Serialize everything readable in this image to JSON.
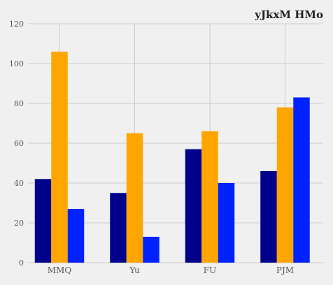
{
  "chart_data": {
    "type": "bar",
    "title": "yJkxM HMo",
    "xlabel": "",
    "ylabel": "",
    "categories": [
      "MMQ",
      "Yu",
      "FU",
      "PJM"
    ],
    "series": [
      {
        "values": [
          42,
          35,
          57,
          46
        ],
        "color": "#00008b"
      },
      {
        "values": [
          106,
          65,
          66,
          78
        ],
        "color": "#ffa500"
      },
      {
        "values": [
          27,
          13,
          40,
          83
        ],
        "color": "#0022ff"
      }
    ],
    "ylim": [
      0,
      120
    ],
    "yticks": [
      0,
      20,
      40,
      60,
      80,
      100,
      120
    ],
    "grid": true,
    "legend": "none"
  }
}
